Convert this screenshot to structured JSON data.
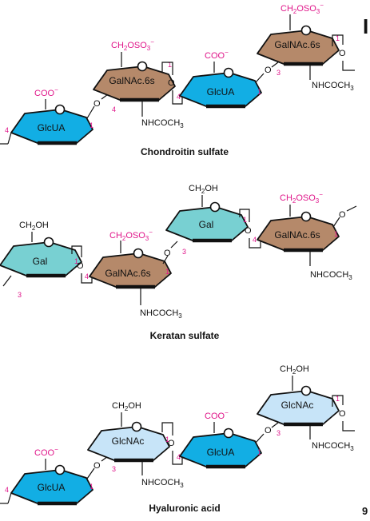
{
  "colors": {
    "glcua": "#12aee4",
    "galnac": "#b5896a",
    "gal": "#78d0d2",
    "glcnac": "#c7e4f8",
    "edge": "#111111",
    "annotation": "#e0168a"
  },
  "labels": {
    "coo": "COO",
    "minus": "−",
    "ch2oso3": "CH",
    "sub2": "2",
    "oso": "OSO",
    "sub3": "3",
    "ch2oh_pre": "CH",
    "ch2oh_post": "OH",
    "nhcoch_pre": "NHCOCH",
    "o": "O"
  },
  "sugars": {
    "glcua": "GlcUA",
    "galnac6s": "GalNAc.6s",
    "gal": "Gal",
    "glcnac": "GlcNAc"
  },
  "positions": {
    "p1": "1",
    "p3": "3",
    "p4": "4"
  },
  "titles": {
    "chondroitin": "Chondroitin sulfate",
    "keratan": "Keratan sulfate",
    "hyaluronic": "Hyaluronic acid"
  },
  "corner": {
    "top_right": "I",
    "page_number": "9"
  }
}
